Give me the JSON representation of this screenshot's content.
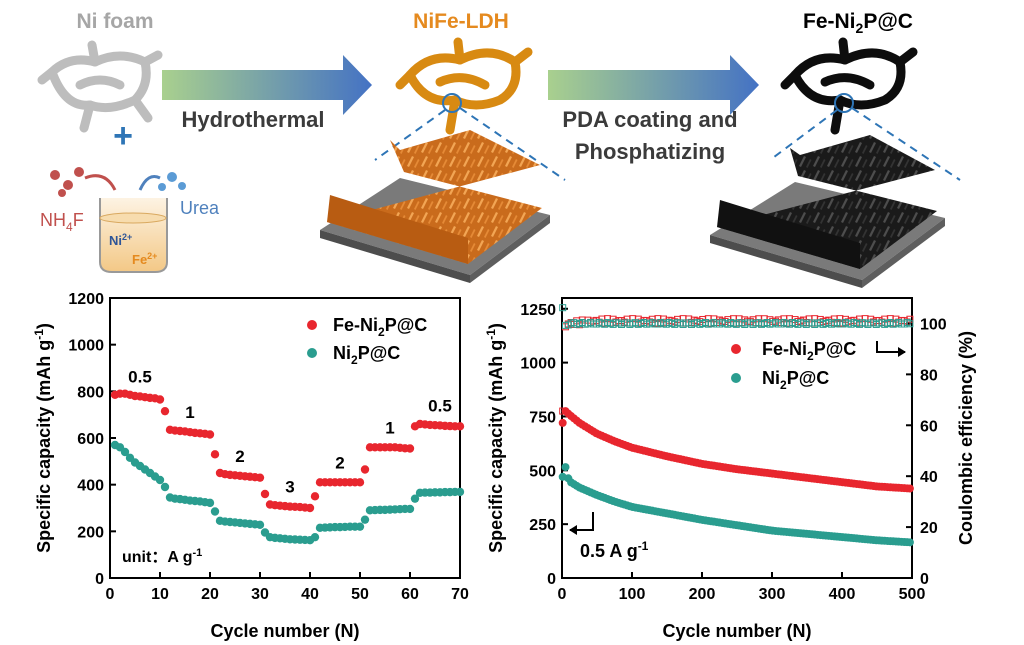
{
  "scheme": {
    "ni_foam": "Ni foam",
    "ldh": "NiFe-LDH",
    "final_prefix": "Fe-Ni",
    "final_sub": "2",
    "final_suffix": "P@C",
    "step1": "Hydrothermal",
    "step2_line1": "PDA coating and",
    "step2_line2": "Phosphatizing",
    "nh4f_prefix": "NH",
    "nh4f_sub": "4",
    "nh4f_suffix": "F",
    "urea": "Urea",
    "ni_ion": "Ni",
    "ni_charge": "2+",
    "fe_ion": "Fe",
    "fe_charge": "2+",
    "colors": {
      "ni_foam": "#a6a6a6",
      "ldh": "#e58a1f",
      "final": "#000000",
      "arrow_start": "#a9d08e",
      "arrow_end": "#4472c4",
      "plus": "#2e75b6",
      "nh4f": "#c0504d",
      "urea": "#4f81bd"
    }
  },
  "legend": {
    "fe_prefix": "Fe-Ni",
    "fe_sub": "2",
    "fe_suffix": "P@C",
    "ni_prefix": "Ni",
    "ni_sub": "2",
    "ni_suffix": "P@C"
  },
  "chart_data": [
    {
      "type": "scatter",
      "xlabel": "Cycle number (N)",
      "ylabel": "Specific capacity (mAh g-1)",
      "xlim": [
        0,
        70
      ],
      "ylim": [
        0,
        1200
      ],
      "xticks": [
        0,
        10,
        20,
        30,
        40,
        50,
        60,
        70
      ],
      "yticks": [
        0,
        200,
        400,
        600,
        800,
        1000,
        1200
      ],
      "unit_note": "unit： A g-1",
      "rate_labels": [
        "0.5",
        "1",
        "2",
        "3",
        "2",
        "1",
        "0.5"
      ],
      "series": [
        {
          "name": "Fe-Ni2P@C",
          "color": "#e8262e",
          "x": [
            1,
            2,
            3,
            4,
            5,
            6,
            7,
            8,
            9,
            10,
            11,
            12,
            13,
            14,
            15,
            16,
            17,
            18,
            19,
            20,
            21,
            22,
            23,
            24,
            25,
            26,
            27,
            28,
            29,
            30,
            31,
            32,
            33,
            34,
            35,
            36,
            37,
            38,
            39,
            40,
            41,
            42,
            43,
            44,
            45,
            46,
            47,
            48,
            49,
            50,
            51,
            52,
            53,
            54,
            55,
            56,
            57,
            58,
            59,
            60,
            61,
            62,
            63,
            64,
            65,
            66,
            67,
            68,
            69,
            70
          ],
          "values": [
            785,
            790,
            790,
            785,
            780,
            778,
            775,
            772,
            770,
            765,
            715,
            635,
            632,
            630,
            628,
            625,
            622,
            620,
            618,
            615,
            530,
            450,
            445,
            442,
            440,
            438,
            436,
            434,
            432,
            430,
            360,
            315,
            312,
            310,
            308,
            306,
            305,
            304,
            302,
            300,
            350,
            410,
            410,
            410,
            410,
            410,
            410,
            410,
            410,
            410,
            465,
            560,
            560,
            560,
            560,
            560,
            560,
            558,
            556,
            555,
            650,
            660,
            658,
            656,
            655,
            654,
            652,
            651,
            650,
            650
          ]
        },
        {
          "name": "Ni2P@C",
          "color": "#2a9d8f",
          "x": [
            1,
            2,
            3,
            4,
            5,
            6,
            7,
            8,
            9,
            10,
            11,
            12,
            13,
            14,
            15,
            16,
            17,
            18,
            19,
            20,
            21,
            22,
            23,
            24,
            25,
            26,
            27,
            28,
            29,
            30,
            31,
            32,
            33,
            34,
            35,
            36,
            37,
            38,
            39,
            40,
            41,
            42,
            43,
            44,
            45,
            46,
            47,
            48,
            49,
            50,
            51,
            52,
            53,
            54,
            55,
            56,
            57,
            58,
            59,
            60,
            61,
            62,
            63,
            64,
            65,
            66,
            67,
            68,
            69,
            70
          ],
          "values": [
            570,
            560,
            540,
            515,
            495,
            480,
            465,
            450,
            435,
            420,
            390,
            345,
            340,
            338,
            335,
            332,
            330,
            328,
            325,
            322,
            285,
            245,
            242,
            240,
            238,
            236,
            234,
            232,
            230,
            228,
            195,
            175,
            172,
            170,
            168,
            166,
            165,
            164,
            163,
            162,
            175,
            215,
            216,
            217,
            218,
            218,
            219,
            220,
            220,
            220,
            250,
            290,
            291,
            292,
            292,
            293,
            294,
            295,
            296,
            296,
            340,
            365,
            366,
            366,
            367,
            367,
            368,
            368,
            369,
            369
          ]
        }
      ]
    },
    {
      "type": "scatter",
      "xlabel": "Cycle number (N)",
      "ylabel": "Specific capacity (mAh g-1)",
      "ylabel_right": "Coulombic efficiency (%)",
      "xlim": [
        0,
        500
      ],
      "ylim": [
        0,
        1300
      ],
      "ylim_right": [
        0,
        110
      ],
      "xticks": [
        0,
        100,
        200,
        300,
        400,
        500
      ],
      "yticks": [
        0,
        250,
        500,
        750,
        1000,
        1250
      ],
      "yticks_right": [
        0,
        20,
        40,
        60,
        80,
        100
      ],
      "annotation": "0.5 A g-1",
      "capacity_fe": {
        "x": [
          1,
          5,
          10,
          25,
          50,
          75,
          100,
          150,
          200,
          250,
          300,
          350,
          400,
          450,
          500
        ],
        "values": [
          720,
          775,
          760,
          720,
          670,
          635,
          605,
          565,
          530,
          505,
          485,
          465,
          445,
          425,
          415
        ]
      },
      "capacity_ni": {
        "x": [
          1,
          5,
          10,
          25,
          50,
          75,
          100,
          150,
          200,
          250,
          300,
          350,
          400,
          450,
          500
        ],
        "values": [
          470,
          515,
          450,
          420,
          385,
          355,
          330,
          300,
          270,
          245,
          220,
          205,
          190,
          175,
          165
        ]
      },
      "ce_fe": {
        "x": [
          1,
          2,
          3,
          5,
          10,
          50,
          100,
          200,
          300,
          400,
          500
        ],
        "values": [
          65,
          95,
          98,
          99,
          100,
          101,
          101,
          101,
          101,
          101,
          101
        ]
      },
      "ce_ni": {
        "x": [
          1,
          2,
          3,
          5,
          10,
          50,
          100,
          200,
          300,
          400,
          500
        ],
        "values": [
          106,
          94,
          97,
          99,
          100,
          100,
          100,
          100,
          100,
          100,
          100
        ]
      }
    }
  ]
}
